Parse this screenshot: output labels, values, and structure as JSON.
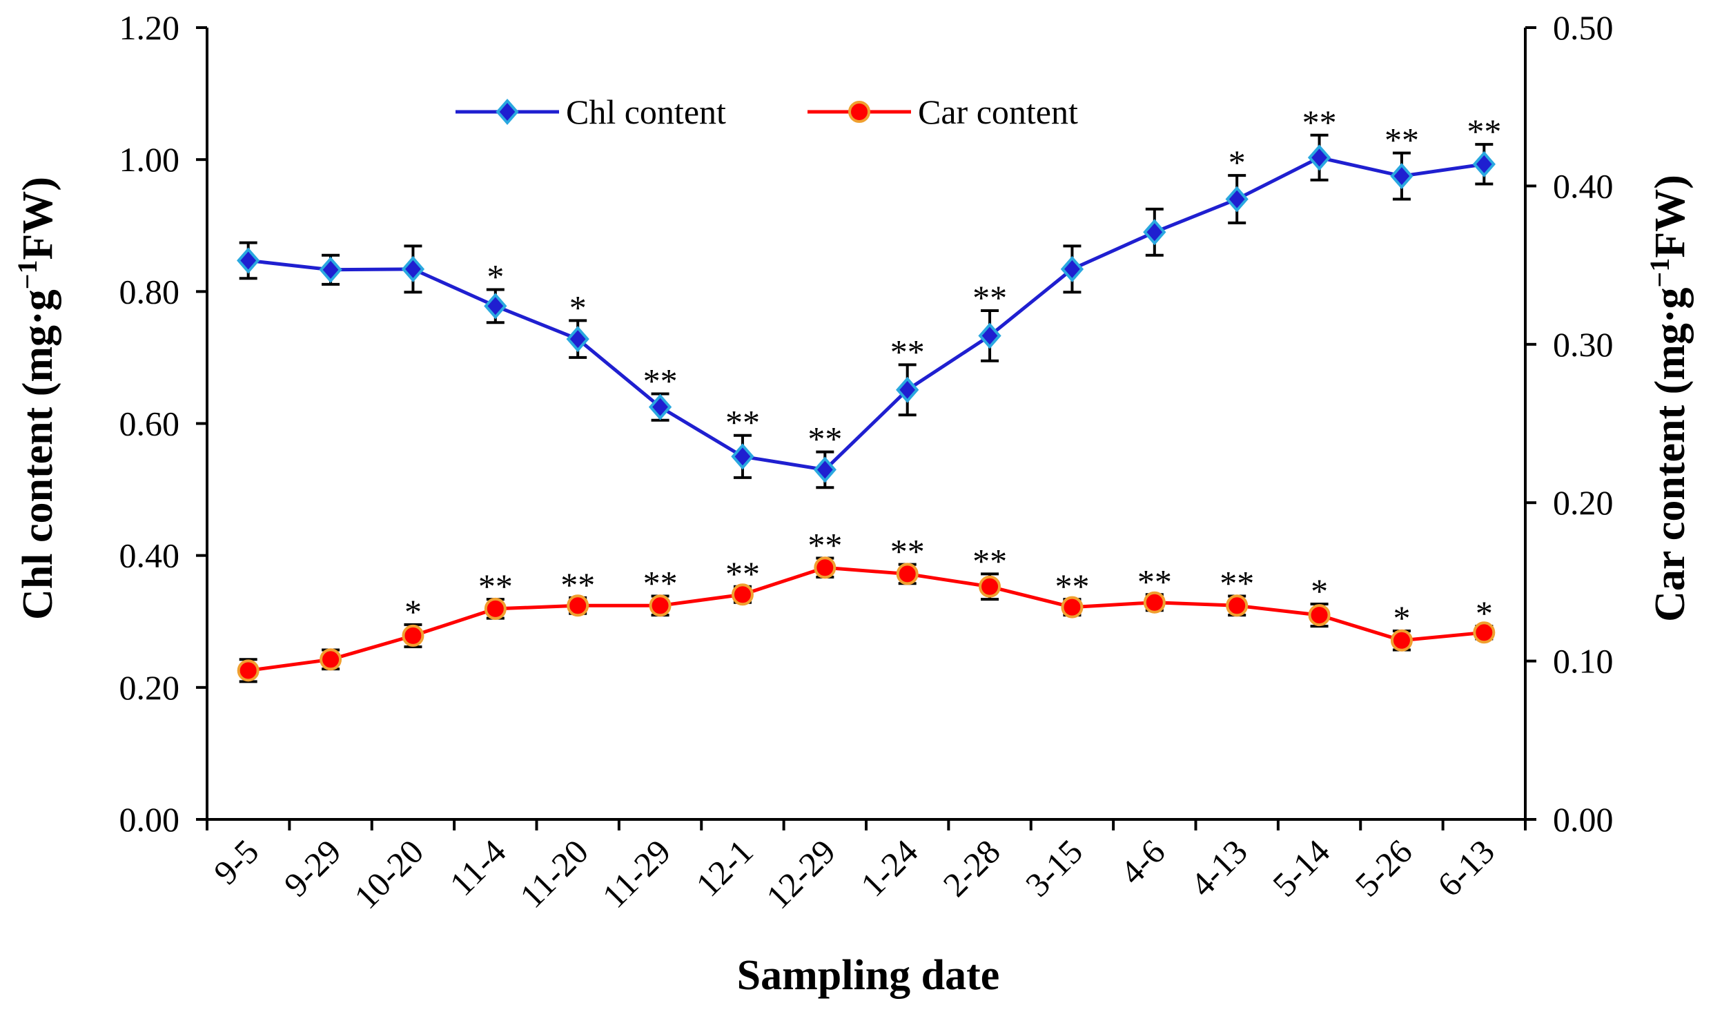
{
  "chart_data": {
    "type": "line",
    "categories": [
      "9-5",
      "9-29",
      "10-20",
      "11-4",
      "11-20",
      "11-29",
      "12-1",
      "12-29",
      "1-24",
      "2-28",
      "3-15",
      "4-6",
      "4-13",
      "5-14",
      "5-26",
      "6-13"
    ],
    "xlabel": "Sampling date",
    "ylabel_left": "Chl content (mg·g",
    "ylabel_left_sup": "−1",
    "ylabel_left_end": "FW)",
    "ylabel_right": "Car content (mg·g",
    "ylabel_right_sup": "−1",
    "ylabel_right_end": "FW)",
    "ylim_left": [
      0,
      1.2
    ],
    "yticks_left": [
      "0.00",
      "0.20",
      "0.40",
      "0.60",
      "0.80",
      "1.00",
      "1.20"
    ],
    "ylim_right": [
      0,
      0.5
    ],
    "yticks_right": [
      "0.00",
      "0.10",
      "0.20",
      "0.30",
      "0.40",
      "0.50"
    ],
    "grid": false,
    "legend_position": "top-center",
    "series": [
      {
        "name": "Chl content",
        "axis": "left",
        "color": "#1f1fd0",
        "marker": "diamond",
        "marker_fill": "#2aa8e0",
        "values": [
          0.847,
          0.833,
          0.834,
          0.778,
          0.728,
          0.625,
          0.55,
          0.53,
          0.651,
          0.733,
          0.834,
          0.89,
          0.94,
          1.003,
          0.975,
          0.993
        ],
        "errors": [
          0.027,
          0.022,
          0.035,
          0.025,
          0.028,
          0.02,
          0.032,
          0.027,
          0.038,
          0.038,
          0.035,
          0.035,
          0.036,
          0.034,
          0.035,
          0.03
        ],
        "significance": [
          "",
          "",
          "",
          "*",
          "*",
          "**",
          "**",
          "**",
          "**",
          "**",
          "",
          "",
          "*",
          "**",
          "**",
          "**"
        ]
      },
      {
        "name": "Car content",
        "axis": "right",
        "color": "#ff0000",
        "marker": "circle",
        "marker_fill": "#ff0000",
        "marker_edge": "#f0a030",
        "values": [
          0.094,
          0.101,
          0.116,
          0.133,
          0.135,
          0.135,
          0.142,
          0.159,
          0.155,
          0.147,
          0.134,
          0.137,
          0.135,
          0.129,
          0.113,
          0.118
        ],
        "errors": [
          0.007,
          0.006,
          0.007,
          0.006,
          0.005,
          0.006,
          0.005,
          0.006,
          0.006,
          0.008,
          0.005,
          0.005,
          0.006,
          0.007,
          0.006,
          0.004
        ],
        "significance": [
          "",
          "",
          "*",
          "**",
          "**",
          "**",
          "**",
          "**",
          "**",
          "**",
          "**",
          "**",
          "**",
          "*",
          "*",
          "*"
        ]
      }
    ]
  }
}
